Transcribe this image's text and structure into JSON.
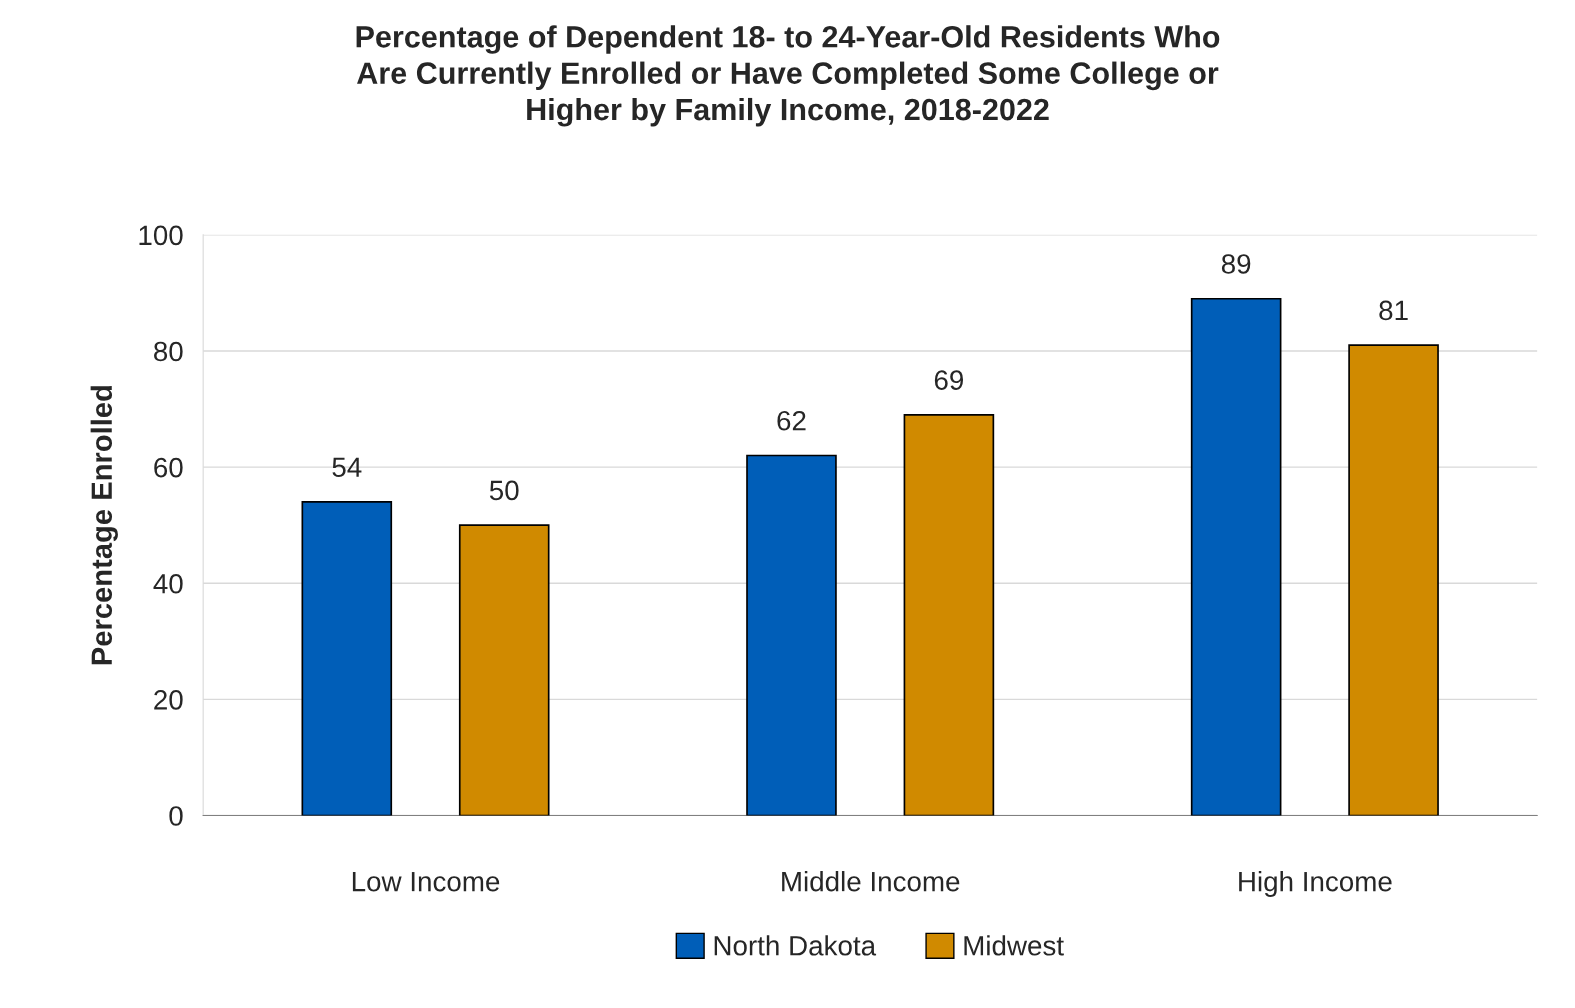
{
  "chart_data": {
    "type": "bar",
    "title": "Percentage of Dependent 18- to 24-Year-Old Residents Who\nAre Currently Enrolled or Have Completed Some College or\nHigher by Family Income, 2018-2022",
    "ylabel": "Percentage Enrolled",
    "categories": [
      "Low Income",
      "Middle Income",
      "High Income"
    ],
    "series": [
      {
        "name": "North Dakota",
        "color": "#005eb8",
        "values": [
          54,
          62,
          89
        ]
      },
      {
        "name": "Midwest",
        "color": "#d08a00",
        "values": [
          50,
          69,
          81
        ]
      }
    ],
    "ylim": [
      0,
      100
    ],
    "yticks": [
      0,
      20,
      40,
      60,
      80,
      100
    ],
    "grid": "y",
    "legend": "bottom",
    "data_labels": true
  }
}
